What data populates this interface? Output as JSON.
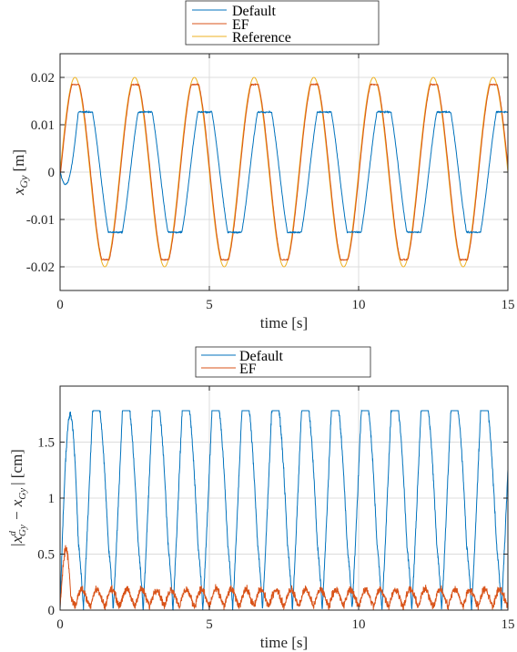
{
  "colors": {
    "default": "#0072BD",
    "ef": "#D95319",
    "reference": "#EDB120",
    "axis": "#262626",
    "grid": "#dcdcdc"
  },
  "chart_data": [
    {
      "type": "line",
      "xlabel": "time [s]",
      "ylabel_main": "x",
      "ylabel_sub": "Gy",
      "ylabel_unit": "[m]",
      "xlim": [
        0,
        15
      ],
      "ylim": [
        -0.025,
        0.025
      ],
      "xticks": [
        0,
        5,
        10,
        15
      ],
      "xtick_labels": [
        "0",
        "5",
        "10",
        "15"
      ],
      "yticks": [
        0.02,
        0.01,
        0,
        -0.01,
        -0.02
      ],
      "ytick_labels": [
        "0.02",
        "0.01",
        "0",
        "-0.01",
        "-0.02"
      ],
      "grid": true,
      "legend": "top-center",
      "signal": {
        "period_s": 2.0
      },
      "series": [
        {
          "name": "Default",
          "color": "#0072BD",
          "amplitude": 0.0127,
          "phase_lag_s": 0.35,
          "noise": 0.0003
        },
        {
          "name": "EF",
          "color": "#D95319",
          "amplitude": 0.0185,
          "phase_lag_s": 0.02,
          "noise": 0.0003
        },
        {
          "name": "Reference",
          "color": "#EDB120",
          "amplitude": 0.02,
          "phase_lag_s": 0.0,
          "noise": 0
        }
      ]
    },
    {
      "type": "line",
      "xlabel": "time [s]",
      "ylabel_left": "|x",
      "ylabel_sup": "d",
      "ylabel_sub1": "Gy",
      "ylabel_mid": " − x",
      "ylabel_sub2": "Gy",
      "ylabel_right": "| [cm]",
      "xlim": [
        0,
        15
      ],
      "ylim": [
        0,
        2.0
      ],
      "xticks": [
        0,
        5,
        10,
        15
      ],
      "xtick_labels": [
        "0",
        "5",
        "10",
        "15"
      ],
      "yticks": [
        0,
        0.5,
        1,
        1.5
      ],
      "ytick_labels": [
        "0",
        "0.5",
        "1",
        "1.5"
      ],
      "grid": true,
      "legend": "top-center",
      "series": [
        {
          "name": "Default",
          "color": "#0072BD",
          "peak": 1.7,
          "noise": 0.03
        },
        {
          "name": "EF",
          "color": "#D95319",
          "peak": 0.15,
          "initial_peak": 0.55,
          "noise": 0.04
        }
      ]
    }
  ]
}
